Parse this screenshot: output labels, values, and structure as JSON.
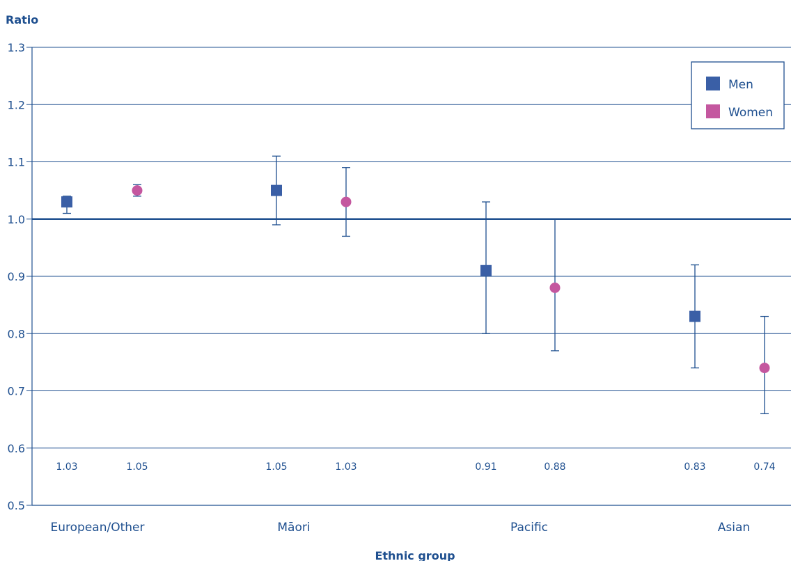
{
  "chart_data": {
    "type": "scatter",
    "ylabel": "Ratio",
    "xlabel": "Ethnic group",
    "ylim": [
      0.5,
      1.3
    ],
    "yticks": [
      "0.5",
      "0.6",
      "0.7",
      "0.8",
      "0.9",
      "1.0",
      "1.1",
      "1.2",
      "1.3"
    ],
    "reference_line": 1.0,
    "grid": true,
    "legend_position": "top-right",
    "categories": [
      "European/Other",
      "Māori",
      "Pacific",
      "Asian"
    ],
    "series": [
      {
        "name": "Men",
        "marker": "square",
        "color": "#3a5fa6",
        "values": [
          1.03,
          1.05,
          0.91,
          0.83
        ],
        "labels": [
          "1.03",
          "1.05",
          "0.91",
          "0.83"
        ],
        "ci_low": [
          1.01,
          0.99,
          0.8,
          0.74
        ],
        "ci_high": [
          1.04,
          1.11,
          1.03,
          0.92
        ]
      },
      {
        "name": "Women",
        "marker": "circle",
        "color": "#c4579f",
        "values": [
          1.05,
          1.03,
          0.88,
          0.74
        ],
        "labels": [
          "1.05",
          "1.03",
          "0.88",
          "0.74"
        ],
        "ci_low": [
          1.04,
          0.97,
          0.77,
          0.66
        ],
        "ci_high": [
          1.06,
          1.09,
          1.0,
          0.83
        ]
      }
    ],
    "axis_color": "#1e4f8f"
  }
}
